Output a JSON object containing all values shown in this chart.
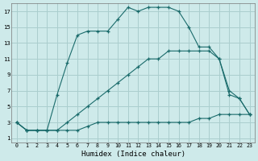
{
  "xlabel": "Humidex (Indice chaleur)",
  "background_color": "#ceeaea",
  "grid_color": "#aacece",
  "line_color": "#1a6b6b",
  "xlim": [
    -0.5,
    23.5
  ],
  "ylim": [
    0.5,
    18
  ],
  "xticks": [
    0,
    1,
    2,
    3,
    4,
    5,
    6,
    7,
    8,
    9,
    10,
    11,
    12,
    13,
    14,
    15,
    16,
    17,
    18,
    19,
    20,
    21,
    22,
    23
  ],
  "yticks": [
    1,
    3,
    5,
    7,
    9,
    11,
    13,
    15,
    17
  ],
  "line1_x": [
    0,
    1,
    2,
    3,
    4,
    5,
    6,
    7,
    8,
    9,
    10,
    11,
    12,
    13,
    14,
    15,
    16,
    17,
    18,
    19,
    20,
    21,
    22,
    23
  ],
  "line1_y": [
    3,
    2,
    2,
    2,
    2,
    2,
    2,
    2.5,
    3,
    3,
    3,
    3,
    3,
    3,
    3,
    3,
    3,
    3,
    3.5,
    3.5,
    4,
    4,
    4,
    4
  ],
  "line2_x": [
    0,
    1,
    2,
    3,
    4,
    5,
    6,
    7,
    8,
    9,
    10,
    11,
    12,
    13,
    14,
    15,
    16,
    17,
    18,
    19,
    20,
    21,
    22,
    23
  ],
  "line2_y": [
    3,
    2,
    2,
    2,
    2,
    3,
    4,
    5,
    6,
    7,
    8,
    9,
    10,
    11,
    11,
    12,
    12,
    12,
    12,
    12,
    11,
    7,
    6,
    4
  ],
  "line3_x": [
    0,
    1,
    2,
    3,
    4,
    5,
    6,
    7,
    8,
    9,
    10,
    11,
    12,
    13,
    14,
    15,
    16,
    17,
    18,
    19,
    20,
    21,
    22,
    23
  ],
  "line3_y": [
    3,
    2,
    2,
    2,
    6.5,
    10.5,
    14,
    14.5,
    14.5,
    14.5,
    16,
    17.5,
    17,
    17.5,
    17.5,
    17.5,
    17,
    15,
    12.5,
    12.5,
    11,
    6.5,
    6,
    4
  ]
}
